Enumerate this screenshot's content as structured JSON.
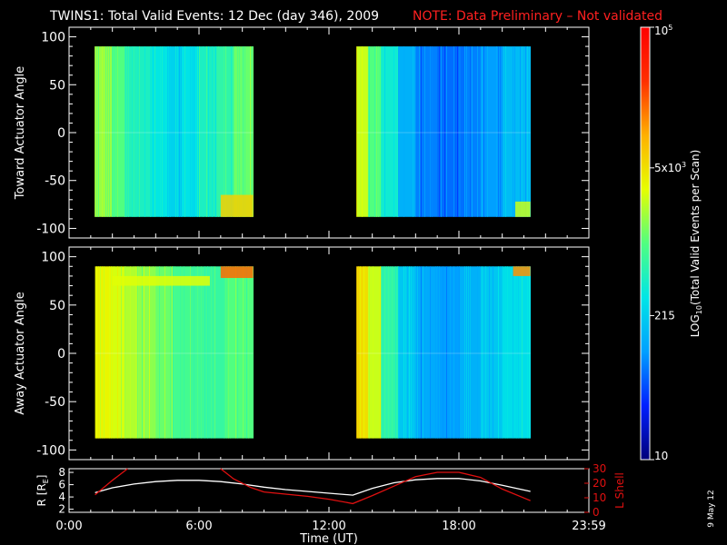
{
  "header": {
    "title": "TWINS1: Total Valid Events: 12 Dec (day 346), 2009",
    "note": "NOTE: Data Preliminary – Not validated"
  },
  "footer": {
    "date_stamp": "9 May 12"
  },
  "colors": {
    "background": "#000000",
    "axes": "#ffffff",
    "note": "#ff2020",
    "radius_line": "#ffffff",
    "lshell_line": "#e01010"
  },
  "chart_data": [
    {
      "type": "heatmap",
      "title": "",
      "ylabel": "Toward Actuator Angle",
      "xlim": [
        0,
        24
      ],
      "ylim": [
        -110,
        110
      ],
      "yticks": [
        100,
        50,
        0,
        -50,
        -100
      ],
      "ytick_labels": [
        "100",
        "50",
        "0",
        "-50",
        "-100"
      ],
      "angle_range": [
        -88,
        90
      ],
      "scale": "log10",
      "blocks": [
        {
          "x_range": [
            1.2,
            8.5
          ],
          "columns": [
            {
              "x_range": [
                1.2,
                2.0
              ],
              "level": 0.56
            },
            {
              "x_range": [
                2.0,
                2.6
              ],
              "level": 0.5
            },
            {
              "x_range": [
                2.6,
                3.0
              ],
              "level": 0.43
            },
            {
              "x_range": [
                3.0,
                3.8
              ],
              "level": 0.42
            },
            {
              "x_range": [
                3.8,
                4.6
              ],
              "level": 0.38
            },
            {
              "x_range": [
                4.6,
                5.2
              ],
              "level": 0.34
            },
            {
              "x_range": [
                5.2,
                6.0
              ],
              "level": 0.37
            },
            {
              "x_range": [
                6.0,
                6.8
              ],
              "level": 0.42
            },
            {
              "x_range": [
                6.8,
                7.6
              ],
              "level": 0.45
            },
            {
              "x_range": [
                7.6,
                8.5
              ],
              "level": 0.52
            }
          ],
          "features": [
            {
              "label": "elevated counts near -80 deg",
              "x_range": [
                7.0,
                8.5
              ],
              "y_range": [
                -88,
                -65
              ],
              "level": 0.7
            }
          ]
        },
        {
          "x_range": [
            13.3,
            21.3
          ],
          "columns": [
            {
              "x_range": [
                13.3,
                13.8
              ],
              "level": 0.6
            },
            {
              "x_range": [
                13.8,
                14.4
              ],
              "level": 0.5
            },
            {
              "x_range": [
                14.4,
                15.2
              ],
              "level": 0.4
            },
            {
              "x_range": [
                15.2,
                16.0
              ],
              "level": 0.28
            },
            {
              "x_range": [
                16.0,
                17.0
              ],
              "level": 0.22
            },
            {
              "x_range": [
                17.0,
                18.0
              ],
              "level": 0.2
            },
            {
              "x_range": [
                18.0,
                19.0
              ],
              "level": 0.22
            },
            {
              "x_range": [
                19.0,
                20.0
              ],
              "level": 0.25
            },
            {
              "x_range": [
                20.0,
                21.3
              ],
              "level": 0.3
            }
          ],
          "features": [
            {
              "label": "elevated counts near -80 deg",
              "x_range": [
                20.6,
                21.3
              ],
              "y_range": [
                -88,
                -72
              ],
              "level": 0.6
            }
          ]
        }
      ]
    },
    {
      "type": "heatmap",
      "title": "",
      "ylabel": "Away Actuator Angle",
      "xlim": [
        0,
        24
      ],
      "ylim": [
        -110,
        110
      ],
      "yticks": [
        100,
        50,
        0,
        -50,
        -100
      ],
      "ytick_labels": [
        "100",
        "50",
        "0",
        "-50",
        "-100"
      ],
      "angle_range": [
        -88,
        90
      ],
      "scale": "log10",
      "blocks": [
        {
          "x_range": [
            1.2,
            8.5
          ],
          "columns": [
            {
              "x_range": [
                1.2,
                2.0
              ],
              "level": 0.64
            },
            {
              "x_range": [
                2.0,
                2.6
              ],
              "level": 0.61
            },
            {
              "x_range": [
                2.6,
                3.2
              ],
              "level": 0.58
            },
            {
              "x_range": [
                3.2,
                4.0
              ],
              "level": 0.55
            },
            {
              "x_range": [
                4.0,
                4.8
              ],
              "level": 0.52
            },
            {
              "x_range": [
                4.8,
                5.6
              ],
              "level": 0.48
            },
            {
              "x_range": [
                5.6,
                6.4
              ],
              "level": 0.47
            },
            {
              "x_range": [
                6.4,
                7.2
              ],
              "level": 0.46
            },
            {
              "x_range": [
                7.2,
                8.5
              ],
              "level": 0.5
            }
          ],
          "features": [
            {
              "label": "elevated counts near +90 deg",
              "x_range": [
                7.0,
                8.5
              ],
              "y_range": [
                78,
                90
              ],
              "level": 0.82
            },
            {
              "label": "band near +75 deg",
              "x_range": [
                2.0,
                6.5
              ],
              "y_range": [
                70,
                80
              ],
              "level": 0.62
            }
          ]
        },
        {
          "x_range": [
            13.3,
            21.3
          ],
          "columns": [
            {
              "x_range": [
                13.3,
                13.8
              ],
              "level": 0.68
            },
            {
              "x_range": [
                13.8,
                14.4
              ],
              "level": 0.6
            },
            {
              "x_range": [
                14.4,
                15.2
              ],
              "level": 0.45
            },
            {
              "x_range": [
                15.2,
                16.0
              ],
              "level": 0.32
            },
            {
              "x_range": [
                16.0,
                17.0
              ],
              "level": 0.27
            },
            {
              "x_range": [
                17.0,
                18.0
              ],
              "level": 0.25
            },
            {
              "x_range": [
                18.0,
                19.0
              ],
              "level": 0.28
            },
            {
              "x_range": [
                19.0,
                20.0
              ],
              "level": 0.32
            },
            {
              "x_range": [
                20.0,
                21.3
              ],
              "level": 0.36
            }
          ],
          "features": [
            {
              "label": "elevated counts near +90 deg",
              "x_range": [
                20.5,
                21.3
              ],
              "y_range": [
                80,
                90
              ],
              "level": 0.78
            }
          ]
        }
      ]
    },
    {
      "type": "line",
      "title": "",
      "xlabel": "Time (UT)",
      "xlim": [
        0,
        24
      ],
      "xticks": [
        0,
        6,
        12,
        18,
        24
      ],
      "xtick_labels": [
        "0:00",
        "6:00",
        "12:00",
        "18:00",
        "23:59"
      ],
      "left_axis": {
        "label": "R [R",
        "label_sub": "E",
        "label_end": "]",
        "ylim": [
          1.5,
          8.6
        ],
        "yticks": [
          2,
          4,
          6,
          8
        ],
        "ytick_labels": [
          "2",
          "4",
          "6",
          "8"
        ]
      },
      "right_axis": {
        "label": "L Shell",
        "ylim": [
          0,
          30
        ],
        "yticks": [
          0,
          10,
          20,
          30
        ],
        "ytick_labels": [
          "0",
          "10",
          "20",
          "30"
        ]
      },
      "series": [
        {
          "axis": "left",
          "color": "#ffffff",
          "x": [
            1.2,
            2,
            3,
            4,
            5,
            6,
            7,
            8,
            9,
            10,
            11,
            12,
            13.1,
            14,
            15,
            16,
            17,
            18,
            19,
            20,
            21.3
          ],
          "y": [
            4.7,
            5.5,
            6.1,
            6.5,
            6.7,
            6.7,
            6.5,
            6.1,
            5.6,
            5.2,
            4.9,
            4.6,
            4.3,
            5.4,
            6.3,
            6.8,
            7.0,
            7.0,
            6.6,
            5.9,
            4.9
          ]
        },
        {
          "axis": "right",
          "color": "#e01010",
          "segments": [
            {
              "x": [
                1.2,
                2.0,
                2.7
              ],
              "y": [
                12,
                22,
                30
              ]
            },
            {
              "x": [
                7.0,
                7.6,
                8.4,
                9.0,
                10,
                11,
                12,
                13.1,
                14,
                15,
                16,
                17,
                18,
                19,
                20,
                21.3
              ],
              "y": [
                30,
                23,
                17,
                14,
                12.5,
                11,
                9,
                6,
                11.5,
                18,
                24.5,
                27.5,
                27.5,
                24,
                16,
                8
              ]
            }
          ]
        }
      ]
    },
    {
      "type": "heatmap",
      "title": "",
      "ylabel": "LOG",
      "ylabel_sub": "10",
      "ylabel_rest": "(Total Valid Events per Scan)",
      "scale": "log10",
      "range": [
        10,
        100000
      ],
      "tick_labels": [
        {
          "base": "10",
          "sup": "5",
          "value": 100000
        },
        {
          "base": "5x10",
          "sup": "3",
          "value": 5000
        },
        {
          "base": "215",
          "sup": "",
          "value": 215
        },
        {
          "base": "10",
          "sup": "",
          "value": 10
        }
      ],
      "colormap": [
        "#00007a",
        "#0020ff",
        "#00a0ff",
        "#00e6e6",
        "#50ff80",
        "#e6ff00",
        "#ffb000",
        "#ff3000",
        "#ff0000"
      ]
    }
  ]
}
